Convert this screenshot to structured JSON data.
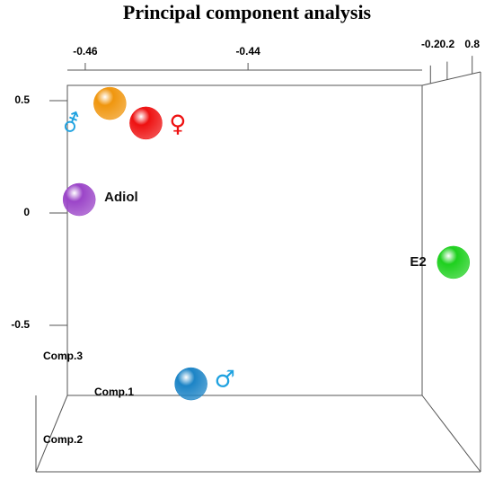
{
  "chart_data": {
    "type": "scatter3d",
    "title": "Principal component analysis",
    "x_label": "Comp.1",
    "y_label": "Comp.3",
    "z_label": "Comp.2",
    "xlim": [
      -0.4622,
      -0.4186
    ],
    "xticks": [
      -0.46,
      -0.44
    ],
    "ylim": [
      -0.812,
      0.568
    ],
    "yticks": [
      0.5,
      0,
      -0.5
    ],
    "zlim": [
      -0.4,
      1.0
    ],
    "zticks": [
      -0.2,
      0.2,
      0.8
    ],
    "points": [
      {
        "label": "⚦",
        "color": "#f0960e",
        "label_color": "#1fa2e0",
        "x": -0.4563,
        "y": 0.478,
        "z": 0.0
      },
      {
        "label": "♀",
        "color": "#ee1111",
        "label_color": "#ee1111",
        "x": -0.452,
        "y": 0.396,
        "z": 0.2
      },
      {
        "label": "Adiol",
        "color": "#9b45c8",
        "label_color": "#111111",
        "x": -0.4605,
        "y": 0.066,
        "z": -0.3
      },
      {
        "label": "E2",
        "color": "#1ed01e",
        "label_color": "#111111",
        "x": -0.4201,
        "y": -0.112,
        "z": 0.7
      },
      {
        "label": "♂",
        "color": "#1c84c6",
        "label_color": "#1fa2e0",
        "x": -0.447,
        "y": -0.601,
        "z": 0.4
      }
    ]
  }
}
